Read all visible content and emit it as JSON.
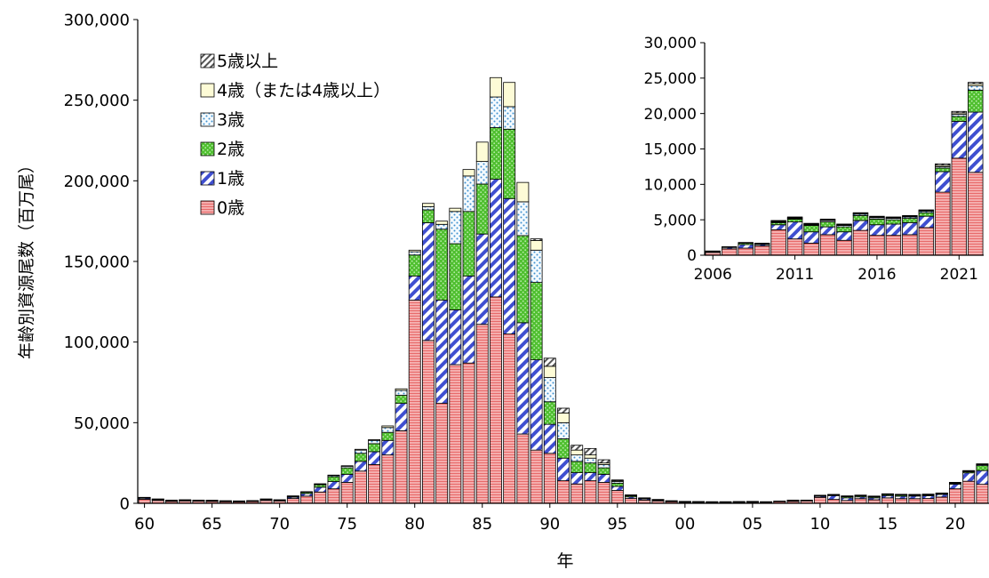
{
  "chart_data": [
    {
      "type": "bar",
      "stacked": true,
      "title": "",
      "xlabel": "年",
      "ylabel": "年齢別資源尾数（百万尾）",
      "ylim": [
        0,
        300000
      ],
      "yticks": [
        "0",
        "50,000",
        "100,000",
        "150,000",
        "200,000",
        "250,000",
        "300,000"
      ],
      "xticks": [
        "60",
        "65",
        "70",
        "75",
        "80",
        "85",
        "90",
        "95",
        "00",
        "05",
        "10",
        "15",
        "20"
      ],
      "legend_position": "top-left",
      "categories": [
        1960,
        1961,
        1962,
        1963,
        1964,
        1965,
        1966,
        1967,
        1968,
        1969,
        1970,
        1971,
        1972,
        1973,
        1974,
        1975,
        1976,
        1977,
        1978,
        1979,
        1980,
        1981,
        1982,
        1983,
        1984,
        1985,
        1986,
        1987,
        1988,
        1989,
        1990,
        1991,
        1992,
        1993,
        1994,
        1995,
        1996,
        1997,
        1998,
        1999,
        2000,
        2001,
        2002,
        2003,
        2004,
        2005,
        2006,
        2007,
        2008,
        2009,
        2010,
        2011,
        2012,
        2013,
        2014,
        2015,
        2016,
        2017,
        2018,
        2019,
        2020,
        2021,
        2022
      ],
      "series": [
        {
          "name": "0歳",
          "color": "#f4a6a6",
          "pattern": "horizontal-lines",
          "values": [
            2500,
            1800,
            1200,
            1500,
            1300,
            1200,
            1000,
            900,
            1100,
            1800,
            1500,
            3000,
            4500,
            7000,
            9000,
            13000,
            20000,
            24000,
            30000,
            45000,
            126000,
            101000,
            62000,
            86000,
            87000,
            111000,
            128000,
            105000,
            43000,
            33000,
            31000,
            14000,
            12000,
            14000,
            13000,
            8000,
            3000,
            2000,
            1500,
            1000,
            700,
            600,
            500,
            500,
            600,
            700,
            800,
            1100,
            1200,
            1600,
            3700,
            2400,
            1800,
            2900,
            2200,
            3400,
            2900,
            2900,
            3000,
            3900,
            9000,
            13700,
            11800
          ]
        },
        {
          "name": "1歳",
          "color": "#4a5bd4",
          "pattern": "diagonal-stripes",
          "values": [
            700,
            500,
            400,
            400,
            400,
            400,
            300,
            300,
            300,
            500,
            400,
            800,
            1500,
            3000,
            4500,
            5000,
            6000,
            8000,
            9000,
            17000,
            15000,
            73000,
            64000,
            34000,
            54000,
            56000,
            73000,
            84000,
            69000,
            56000,
            18000,
            14000,
            7000,
            5000,
            5000,
            2500,
            1000,
            700,
            500,
            300,
            200,
            200,
            200,
            200,
            200,
            200,
            100,
            200,
            500,
            200,
            700,
            2400,
            1600,
            1100,
            1200,
            1400,
            1500,
            1600,
            1700,
            1600,
            2900,
            5200,
            8500
          ]
        },
        {
          "name": "2歳",
          "color": "#5cbf3a",
          "pattern": "dots",
          "values": [
            300,
            200,
            200,
            200,
            200,
            200,
            200,
            200,
            200,
            300,
            200,
            500,
            900,
            1500,
            3000,
            4000,
            5000,
            5000,
            5000,
            5000,
            13000,
            8000,
            44000,
            41000,
            40000,
            31000,
            32000,
            43000,
            54000,
            48000,
            14000,
            12000,
            7000,
            6000,
            4000,
            2000,
            700,
            400,
            300,
            200,
            200,
            200,
            200,
            200,
            200,
            200,
            100,
            100,
            200,
            100,
            300,
            400,
            900,
            700,
            700,
            700,
            800,
            600,
            600,
            500,
            500,
            700,
            3100
          ]
        },
        {
          "name": "3歳",
          "color": "#cfe7f7",
          "pattern": "sparse-dots",
          "values": [
            100,
            100,
            100,
            100,
            100,
            100,
            100,
            100,
            100,
            100,
            100,
            200,
            200,
            500,
            800,
            1000,
            2000,
            2000,
            3000,
            3000,
            2000,
            2000,
            3000,
            20000,
            22000,
            14000,
            19000,
            14000,
            21000,
            20000,
            15000,
            10000,
            4000,
            3000,
            2000,
            1000,
            300,
            200,
            100,
            100,
            100,
            100,
            100,
            100,
            100,
            100,
            0,
            0,
            100,
            100,
            100,
            100,
            100,
            200,
            200,
            200,
            200,
            200,
            200,
            200,
            200,
            300,
            600
          ]
        },
        {
          "name": "4歳（または4歳以上）",
          "color": "#fdfbd6",
          "pattern": "none",
          "values": [
            100,
            100,
            100,
            0,
            0,
            0,
            0,
            0,
            0,
            0,
            0,
            100,
            100,
            100,
            200,
            300,
            500,
            500,
            1000,
            1000,
            1000,
            2000,
            2000,
            2000,
            4000,
            12000,
            12000,
            15000,
            12000,
            6000,
            7000,
            6000,
            3000,
            2000,
            1000,
            500,
            100,
            100,
            0,
            0,
            0,
            0,
            0,
            0,
            0,
            0,
            0,
            0,
            0,
            0,
            100,
            100,
            100,
            100,
            100,
            100,
            100,
            100,
            100,
            100,
            200,
            200,
            300
          ]
        },
        {
          "name": "5歳以上",
          "color": "#e2e2e2",
          "pattern": "coarse-diagonal",
          "values": [
            0,
            0,
            0,
            0,
            0,
            0,
            0,
            0,
            0,
            0,
            0,
            0,
            0,
            0,
            0,
            0,
            0,
            0,
            0,
            0,
            0,
            0,
            0,
            0,
            0,
            0,
            0,
            0,
            0,
            1000,
            5000,
            3000,
            3000,
            4000,
            2000,
            500,
            100,
            0,
            0,
            0,
            0,
            0,
            0,
            0,
            0,
            0,
            0,
            0,
            0,
            0,
            100,
            100,
            100,
            100,
            100,
            100,
            100,
            100,
            100,
            100,
            200,
            200,
            200
          ]
        }
      ]
    },
    {
      "type": "bar",
      "stacked": true,
      "inset": true,
      "title": "",
      "xlabel": "",
      "ylabel": "",
      "ylim": [
        0,
        30000
      ],
      "yticks": [
        "0",
        "5,000",
        "10,000",
        "15,000",
        "20,000",
        "25,000",
        "30,000"
      ],
      "xticks": [
        "2006",
        "2011",
        "2016",
        "2021"
      ],
      "categories": [
        2006,
        2007,
        2008,
        2009,
        2010,
        2011,
        2012,
        2013,
        2014,
        2015,
        2016,
        2017,
        2018,
        2019,
        2020,
        2021,
        2022
      ],
      "series": [
        {
          "name": "0歳",
          "values": [
            400,
            900,
            1000,
            1300,
            3600,
            2300,
            1700,
            2900,
            2100,
            3500,
            2800,
            2800,
            2900,
            3900,
            8900,
            13700,
            11700
          ]
        },
        {
          "name": "1歳",
          "values": [
            100,
            200,
            500,
            200,
            700,
            2400,
            1600,
            1100,
            1200,
            1400,
            1500,
            1600,
            1700,
            1600,
            2900,
            5200,
            8500
          ]
        },
        {
          "name": "2歳",
          "values": [
            100,
            100,
            200,
            100,
            300,
            400,
            900,
            700,
            700,
            700,
            800,
            600,
            600,
            500,
            500,
            700,
            3100
          ]
        },
        {
          "name": "3歳",
          "values": [
            0,
            0,
            100,
            100,
            100,
            100,
            100,
            200,
            200,
            200,
            200,
            200,
            200,
            200,
            200,
            300,
            600
          ]
        },
        {
          "name": "4歳（または4歳以上）",
          "values": [
            0,
            0,
            0,
            0,
            100,
            100,
            100,
            100,
            100,
            100,
            100,
            100,
            100,
            100,
            200,
            200,
            300
          ]
        },
        {
          "name": "5歳以上",
          "values": [
            0,
            0,
            0,
            0,
            100,
            100,
            100,
            100,
            100,
            100,
            100,
            100,
            100,
            100,
            200,
            200,
            200
          ]
        }
      ]
    }
  ]
}
